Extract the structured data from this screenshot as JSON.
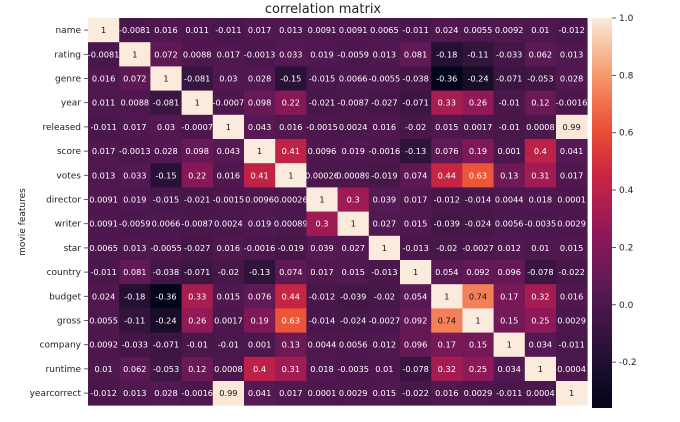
{
  "chart_data": {
    "type": "heatmap",
    "title": "correlation matrix",
    "ylabel": "movie features",
    "xlabel": "",
    "rows": [
      "name",
      "rating",
      "genre",
      "year",
      "released",
      "score",
      "votes",
      "director",
      "writer",
      "star",
      "country",
      "budget",
      "gross",
      "company",
      "runtime",
      "yearcorrect"
    ],
    "columns": [],
    "cell_labels": [
      [
        "1",
        "-0.0081",
        "0.016",
        "0.011",
        "-0.011",
        "0.017",
        "0.013",
        "0.0091",
        "0.0091",
        "0.0065",
        "-0.011",
        "0.024",
        "0.0055",
        "0.0092",
        "0.01",
        "-0.012"
      ],
      [
        "-0.0081",
        "1",
        "0.072",
        "0.0088",
        "0.017",
        "-0.0013",
        "0.033",
        "0.019",
        "-0.0059",
        "0.013",
        "0.081",
        "-0.18",
        "-0.11",
        "-0.033",
        "0.062",
        "0.013"
      ],
      [
        "0.016",
        "0.072",
        "1",
        "-0.081",
        "0.03",
        "0.028",
        "-0.15",
        "-0.015",
        "0.0066",
        "-0.0055",
        "-0.038",
        "-0.36",
        "-0.24",
        "-0.071",
        "-0.053",
        "0.028"
      ],
      [
        "0.011",
        "0.0088",
        "-0.081",
        "1",
        "-0.0007",
        "0.098",
        "0.22",
        "-0.021",
        "-0.0087",
        "-0.027",
        "-0.071",
        "0.33",
        "0.26",
        "-0.01",
        "0.12",
        "-0.0016"
      ],
      [
        "-0.011",
        "0.017",
        "0.03",
        "-0.0007",
        "1",
        "0.043",
        "0.016",
        "-0.0015",
        "0.0024",
        "0.016",
        "-0.02",
        "0.015",
        "0.0017",
        "-0.01",
        "0.0008",
        "0.99"
      ],
      [
        "0.017",
        "-0.0013",
        "0.028",
        "0.098",
        "0.043",
        "1",
        "0.41",
        "0.0096",
        "0.019",
        "-0.0016",
        "-0.13",
        "0.076",
        "0.19",
        "0.001",
        "0.4",
        "0.041"
      ],
      [
        "0.013",
        "0.033",
        "-0.15",
        "0.22",
        "0.016",
        "0.41",
        "1",
        "0.00026",
        "0.00089",
        "-0.019",
        "0.074",
        "0.44",
        "0.63",
        "0.13",
        "0.31",
        "0.017"
      ],
      [
        "0.0091",
        "0.019",
        "-0.015",
        "-0.021",
        "-0.0015",
        "0.0096",
        "0.00026",
        "1",
        "0.3",
        "0.039",
        "0.017",
        "-0.012",
        "-0.014",
        "0.0044",
        "0.018",
        "0.0001"
      ],
      [
        "0.0091",
        "-0.0059",
        "0.0066",
        "-0.0087",
        "0.0024",
        "0.019",
        "0.00089",
        "0.3",
        "1",
        "0.027",
        "0.015",
        "-0.039",
        "-0.024",
        "0.0056",
        "-0.0035",
        "0.0029"
      ],
      [
        "0.0065",
        "0.013",
        "-0.0055",
        "-0.027",
        "0.016",
        "-0.0016",
        "-0.019",
        "0.039",
        "0.027",
        "1",
        "-0.013",
        "-0.02",
        "-0.0027",
        "0.012",
        "0.01",
        "0.015"
      ],
      [
        "-0.011",
        "0.081",
        "-0.038",
        "-0.071",
        "-0.02",
        "-0.13",
        "0.074",
        "0.017",
        "0.015",
        "-0.013",
        "1",
        "0.054",
        "0.092",
        "0.096",
        "-0.078",
        "-0.022"
      ],
      [
        "0.024",
        "-0.18",
        "-0.36",
        "0.33",
        "0.015",
        "0.076",
        "0.44",
        "-0.012",
        "-0.039",
        "-0.02",
        "0.054",
        "1",
        "0.74",
        "0.17",
        "0.32",
        "0.016"
      ],
      [
        "0.0055",
        "-0.11",
        "-0.24",
        "0.26",
        "0.0017",
        "0.19",
        "0.63",
        "-0.014",
        "-0.024",
        "-0.0027",
        "0.092",
        "0.74",
        "1",
        "0.15",
        "0.25",
        "0.0029"
      ],
      [
        "0.0092",
        "-0.033",
        "-0.071",
        "-0.01",
        "-0.01",
        "0.001",
        "0.13",
        "0.0044",
        "0.0056",
        "0.012",
        "0.096",
        "0.17",
        "0.15",
        "1",
        "0.034",
        "-0.011"
      ],
      [
        "0.01",
        "0.062",
        "-0.053",
        "0.12",
        "0.0008",
        "0.4",
        "0.31",
        "0.018",
        "-0.0035",
        "0.01",
        "-0.078",
        "0.32",
        "0.25",
        "0.034",
        "1",
        "0.0004"
      ],
      [
        "-0.012",
        "0.013",
        "0.028",
        "-0.0016",
        "0.99",
        "0.041",
        "0.017",
        "0.0001",
        "0.0029",
        "0.015",
        "-0.022",
        "0.016",
        "0.0029",
        "-0.011",
        "0.0004",
        "1"
      ]
    ],
    "colorbar": {
      "range": [
        -0.36,
        1.0
      ],
      "ticks": [
        "1.0",
        "0.8",
        "0.6",
        "0.4",
        "0.2",
        "0.0",
        "-0.2"
      ],
      "tick_values": [
        1.0,
        0.8,
        0.6,
        0.4,
        0.2,
        0.0,
        -0.2
      ],
      "colormap": "rocket"
    },
    "legend": "colorbar-right",
    "grid": false
  }
}
